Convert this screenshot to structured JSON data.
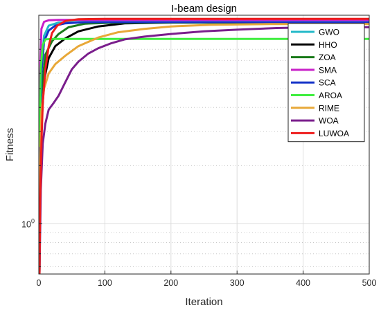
{
  "chart_data": {
    "type": "line",
    "title": "I-beam design",
    "xlabel": "Iteration",
    "ylabel": "Fitness",
    "xlim": [
      0,
      500
    ],
    "ylim_log": [
      0.55,
      12
    ],
    "y_scale": "log",
    "x_ticks": [
      0,
      100,
      200,
      300,
      400,
      500
    ],
    "y_tick_labels": [
      {
        "value": 1,
        "base": "10",
        "exp": "0"
      }
    ],
    "grid": true,
    "legend_position": "top-right",
    "series": [
      {
        "name": "GWO",
        "color": "#22b8c8",
        "points": [
          [
            1,
            0.55
          ],
          [
            2,
            4.2
          ],
          [
            4,
            6.5
          ],
          [
            8,
            9.4
          ],
          [
            15,
            10.6
          ],
          [
            30,
            11.0
          ],
          [
            60,
            11.05
          ],
          [
            500,
            11.05
          ]
        ]
      },
      {
        "name": "HHO",
        "color": "#000000",
        "points": [
          [
            1,
            0.55
          ],
          [
            2,
            1.6
          ],
          [
            4,
            3.2
          ],
          [
            8,
            5.5
          ],
          [
            15,
            7.2
          ],
          [
            25,
            8.3
          ],
          [
            40,
            9.1
          ],
          [
            60,
            9.9
          ],
          [
            90,
            10.5
          ],
          [
            130,
            10.9
          ],
          [
            200,
            11.0
          ],
          [
            500,
            11.0
          ]
        ]
      },
      {
        "name": "ZOA",
        "color": "#1a7a1a",
        "points": [
          [
            1,
            0.55
          ],
          [
            2,
            2.2
          ],
          [
            4,
            4.8
          ],
          [
            10,
            7.5
          ],
          [
            20,
            8.8
          ],
          [
            30,
            9.6
          ],
          [
            45,
            10.4
          ],
          [
            70,
            10.85
          ],
          [
            120,
            11.0
          ],
          [
            500,
            11.0
          ]
        ]
      },
      {
        "name": "SMA",
        "color": "#c81ec8",
        "points": [
          [
            1,
            0.55
          ],
          [
            2,
            6.0
          ],
          [
            4,
            10.2
          ],
          [
            8,
            11.1
          ],
          [
            15,
            11.3
          ],
          [
            30,
            11.35
          ],
          [
            500,
            11.35
          ]
        ]
      },
      {
        "name": "SCA",
        "color": "#1432c8",
        "points": [
          [
            1,
            0.55
          ],
          [
            2,
            3.0
          ],
          [
            4,
            6.0
          ],
          [
            8,
            8.8
          ],
          [
            15,
            10.0
          ],
          [
            25,
            10.6
          ],
          [
            40,
            10.9
          ],
          [
            70,
            11.05
          ],
          [
            500,
            11.05
          ]
        ]
      },
      {
        "name": "AROA",
        "color": "#3fee3f",
        "points": [
          [
            1,
            2.5
          ],
          [
            3,
            6.4
          ],
          [
            6,
            8.4
          ],
          [
            10,
            9.0
          ],
          [
            20,
            9.05
          ],
          [
            500,
            9.05
          ]
        ]
      },
      {
        "name": "RIME",
        "color": "#e8a838",
        "points": [
          [
            1,
            0.55
          ],
          [
            2,
            2.0
          ],
          [
            4,
            3.8
          ],
          [
            8,
            5.0
          ],
          [
            15,
            6.0
          ],
          [
            25,
            6.7
          ],
          [
            40,
            7.4
          ],
          [
            60,
            8.3
          ],
          [
            90,
            9.2
          ],
          [
            120,
            9.8
          ],
          [
            160,
            10.2
          ],
          [
            200,
            10.5
          ],
          [
            260,
            10.7
          ],
          [
            350,
            10.8
          ],
          [
            500,
            10.8
          ]
        ]
      },
      {
        "name": "WOA",
        "color": "#7a1e8c",
        "points": [
          [
            1,
            0.55
          ],
          [
            3,
            1.5
          ],
          [
            6,
            2.6
          ],
          [
            10,
            3.3
          ],
          [
            15,
            3.9
          ],
          [
            22,
            4.2
          ],
          [
            30,
            4.6
          ],
          [
            40,
            5.4
          ],
          [
            50,
            6.3
          ],
          [
            60,
            6.9
          ],
          [
            75,
            7.6
          ],
          [
            90,
            8.1
          ],
          [
            110,
            8.6
          ],
          [
            130,
            9.0
          ],
          [
            160,
            9.3
          ],
          [
            200,
            9.6
          ],
          [
            250,
            9.9
          ],
          [
            300,
            10.1
          ],
          [
            360,
            10.3
          ],
          [
            420,
            10.4
          ],
          [
            500,
            10.4
          ]
        ]
      },
      {
        "name": "LUWOA",
        "color": "#ee1c1c",
        "points": [
          [
            1,
            0.55
          ],
          [
            2,
            1.3
          ],
          [
            4,
            2.6
          ],
          [
            6,
            4.2
          ],
          [
            10,
            6.3
          ],
          [
            15,
            8.3
          ],
          [
            20,
            9.7
          ],
          [
            28,
            10.6
          ],
          [
            40,
            11.2
          ],
          [
            60,
            11.45
          ],
          [
            100,
            11.5
          ],
          [
            500,
            11.5
          ]
        ]
      }
    ]
  }
}
